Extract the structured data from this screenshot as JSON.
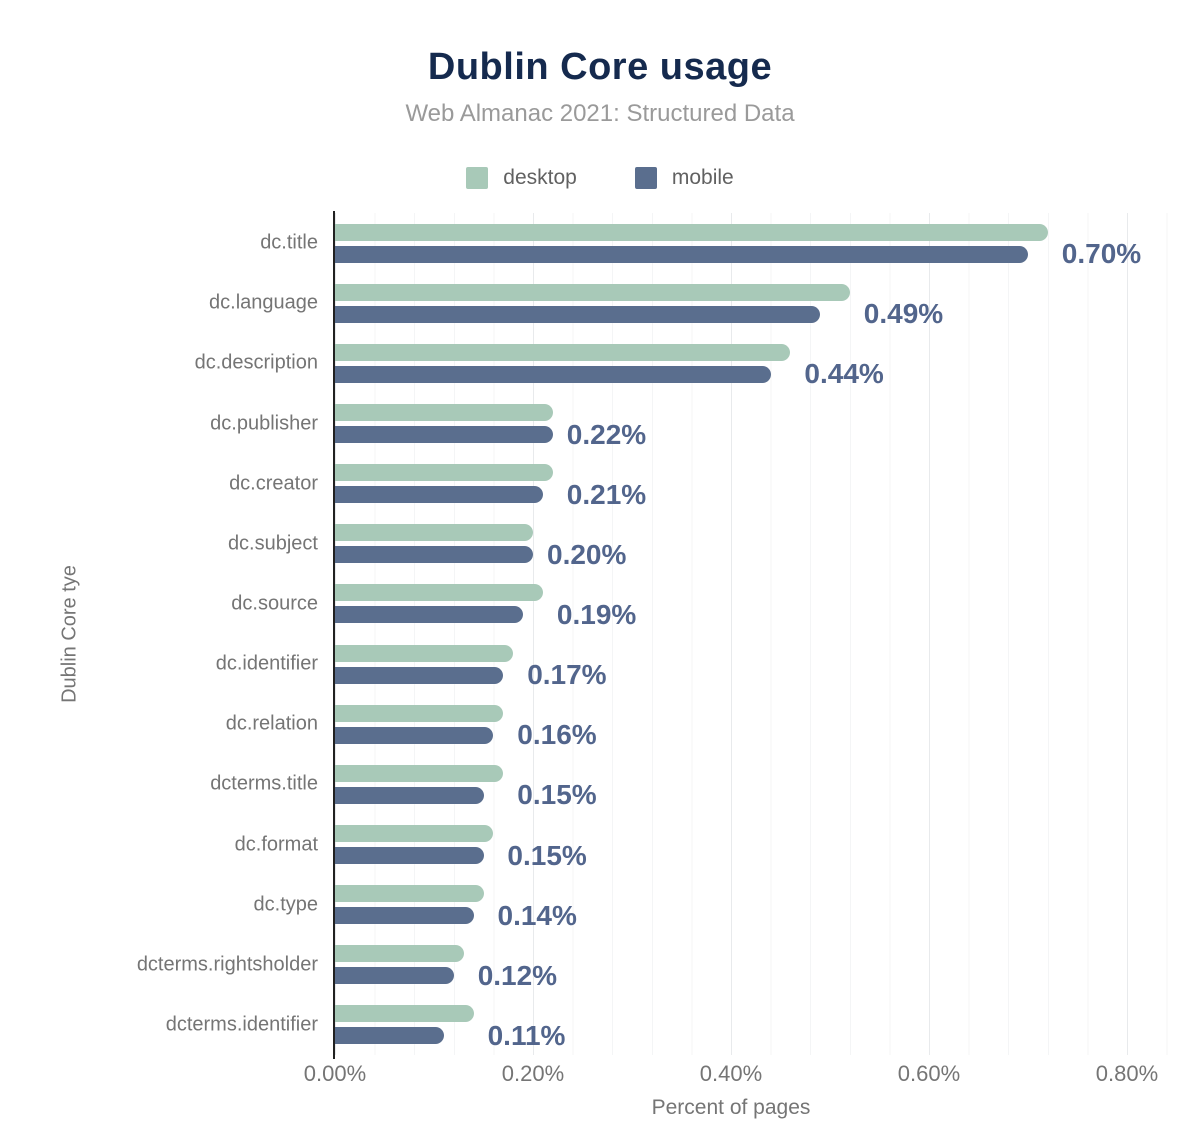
{
  "header": {
    "title": "Dublin Core usage",
    "subtitle": "Web Almanac 2021: Structured Data"
  },
  "legend": {
    "items": [
      {
        "label": "desktop",
        "color": "#a8c9b8"
      },
      {
        "label": "mobile",
        "color": "#5a6e8e"
      }
    ]
  },
  "chart_data": {
    "type": "bar",
    "orientation": "horizontal",
    "title": "Dublin Core usage",
    "subtitle": "Web Almanac 2021: Structured Data",
    "xlabel": "Percent of pages",
    "ylabel": "Dublin Core tye",
    "xlim": [
      0,
      0.8
    ],
    "x_ticks": [
      "0.00%",
      "0.20%",
      "0.40%",
      "0.60%",
      "0.80%"
    ],
    "x_tick_values": [
      0,
      0.2,
      0.4,
      0.6,
      0.8
    ],
    "grid": {
      "major_step": 0.2,
      "minor_step": 0.04,
      "grid_on": true
    },
    "legend_position": "top",
    "categories": [
      "dc.title",
      "dc.language",
      "dc.description",
      "dc.publisher",
      "dc.creator",
      "dc.subject",
      "dc.source",
      "dc.identifier",
      "dc.relation",
      "dcterms.title",
      "dc.format",
      "dc.type",
      "dcterms.rightsholder",
      "dcterms.identifier"
    ],
    "series": [
      {
        "name": "desktop",
        "color": "#a8c9b8",
        "values": [
          0.72,
          0.52,
          0.46,
          0.22,
          0.22,
          0.2,
          0.21,
          0.18,
          0.17,
          0.17,
          0.16,
          0.15,
          0.13,
          0.14
        ]
      },
      {
        "name": "mobile",
        "color": "#5a6e8e",
        "values": [
          0.7,
          0.49,
          0.44,
          0.22,
          0.21,
          0.2,
          0.19,
          0.17,
          0.16,
          0.15,
          0.15,
          0.14,
          0.12,
          0.11
        ]
      }
    ],
    "value_labels": [
      "0.70%",
      "0.49%",
      "0.44%",
      "0.22%",
      "0.21%",
      "0.20%",
      "0.19%",
      "0.17%",
      "0.16%",
      "0.15%",
      "0.15%",
      "0.14%",
      "0.12%",
      "0.11%"
    ]
  },
  "colors": {
    "title": "#152a4e",
    "subtitle": "#9a9a9a",
    "axis_text": "#757575",
    "value_label": "#52658c",
    "axis_line": "#212121",
    "desktop": "#a8c9b8",
    "mobile": "#5a6e8e"
  }
}
